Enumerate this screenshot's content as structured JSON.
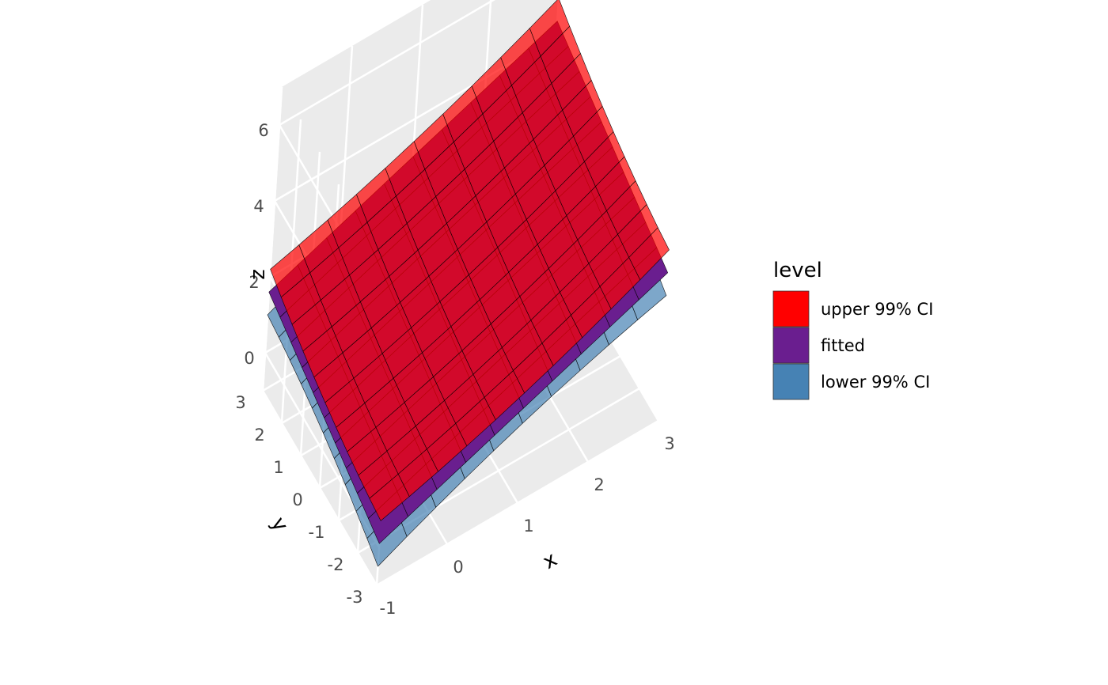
{
  "chart_data": {
    "type": "surface3d",
    "title": "",
    "x": {
      "label": "x",
      "range": [
        -1,
        3
      ],
      "ticks": [
        "-1",
        "0",
        "1",
        "2",
        "3"
      ]
    },
    "y": {
      "label": "y",
      "range": [
        -3,
        3
      ],
      "ticks": [
        "-3",
        "-2",
        "-1",
        "0",
        "1",
        "2",
        "3"
      ]
    },
    "z": {
      "label": "z",
      "range": [
        -1,
        7
      ],
      "ticks": [
        "0",
        "2",
        "4",
        "6"
      ]
    },
    "grid": true,
    "background": "#EBEBEB",
    "legend": {
      "title": "level",
      "position": "right",
      "entries": [
        {
          "label": "upper 99% CI",
          "color": "#FF0000"
        },
        {
          "label": "fitted",
          "color": "#6A1E8F"
        },
        {
          "label": "lower 99% CI",
          "color": "#4682B4"
        }
      ]
    },
    "surface": {
      "x_domain": [
        -1,
        3
      ],
      "y_domain": [
        -3,
        3
      ],
      "fitted": {
        "z_corners": {
          "x=-1,y=-3": 0.1,
          "x=3,y=-3": 2.9,
          "x=-1,y=3": 1.6,
          "x=3,y=3": 4.4
        }
      },
      "ci_halfwidth_z": {
        "center": 0.2,
        "corners": 0.6
      }
    },
    "series": [
      {
        "name": "upper 99% CI",
        "color": "#FF0000",
        "opacity": 0.7
      },
      {
        "name": "fitted",
        "color": "#6A1E8F",
        "opacity": 1
      },
      {
        "name": "lower 99% CI",
        "color": "#4682B4",
        "opacity": 0.7
      }
    ]
  }
}
